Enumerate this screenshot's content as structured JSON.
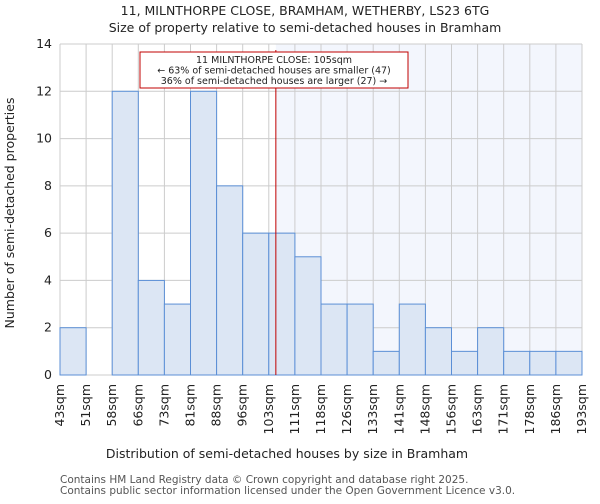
{
  "chart_data": {
    "type": "bar",
    "title": "11, MILNTHORPE CLOSE, BRAMHAM, WETHERBY, LS23 6TG",
    "subtitle": "Size of property relative to semi-detached houses in Bramham",
    "xlabel": "Distribution of semi-detached houses by size in Bramham",
    "ylabel": "Number of semi-detached properties",
    "bin_edges": [
      43,
      51,
      58,
      66,
      73,
      81,
      88,
      96,
      103,
      111,
      118,
      126,
      133,
      141,
      148,
      156,
      163,
      171,
      178,
      186,
      193
    ],
    "tick_labels": [
      "43sqm",
      "51sqm",
      "58sqm",
      "66sqm",
      "73sqm",
      "81sqm",
      "88sqm",
      "96sqm",
      "103sqm",
      "111sqm",
      "118sqm",
      "126sqm",
      "133sqm",
      "141sqm",
      "148sqm",
      "156sqm",
      "163sqm",
      "171sqm",
      "178sqm",
      "186sqm",
      "193sqm"
    ],
    "values": [
      2,
      0,
      12,
      4,
      3,
      12,
      8,
      6,
      6,
      5,
      3,
      3,
      1,
      3,
      2,
      1,
      2,
      1,
      1,
      1
    ],
    "ylim": [
      0,
      14
    ],
    "yticks": [
      0,
      2,
      4,
      6,
      8,
      10,
      12,
      14
    ],
    "grid": true,
    "marker_value": 105,
    "marker_bin_position": 8.27,
    "annotation": [
      "11 MILNTHORPE CLOSE: 105sqm",
      "← 63% of semi-detached houses are smaller (47)",
      "36% of semi-detached houses are larger (27) →"
    ],
    "colors": {
      "bar_fill": "#dce6f4",
      "bar_edge": "#5b8fd6",
      "marker": "#c00000",
      "highlight": "#f3f6fd",
      "grid": "#cccccc"
    }
  },
  "footer": [
    "Contains HM Land Registry data © Crown copyright and database right 2025.",
    "Contains public sector information licensed under the Open Government Licence v3.0."
  ]
}
